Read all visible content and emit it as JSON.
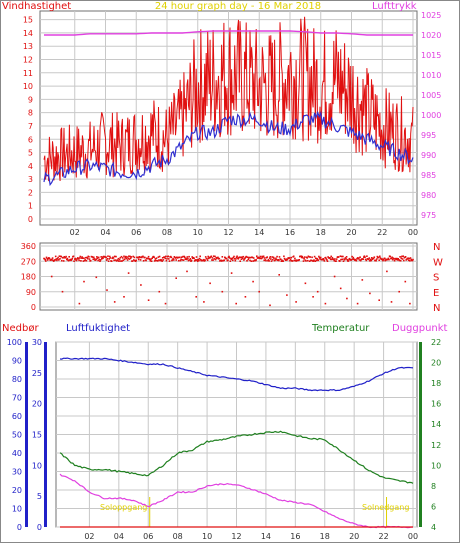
{
  "colors": {
    "wind": "#e01010",
    "wind_avg": "#3030d0",
    "pressure": "#e040e0",
    "direction": "#e01010",
    "humidity": "#2020c8",
    "temperature": "#208020",
    "dewpoint": "#e040e0",
    "precip": "#e01010",
    "sun": "#e0d000",
    "frame": "#707070",
    "grid": "#c8c8c8"
  },
  "chart_data": [
    {
      "type": "line",
      "title": "24 hour graph day - 16 Mar 2018",
      "ylabel": "Vindhastighet",
      "y2label": "Lufttrykk",
      "x_ticks": [
        "02",
        "04",
        "06",
        "08",
        "10",
        "12",
        "14",
        "16",
        "18",
        "20",
        "22",
        "00"
      ],
      "y_ticks": [
        "0",
        "1",
        "2",
        "3",
        "4",
        "5",
        "6",
        "7",
        "8",
        "9",
        "10",
        "11",
        "12",
        "13",
        "14",
        "15"
      ],
      "y2_ticks": [
        "975",
        "980",
        "985",
        "990",
        "995",
        "1000",
        "1005",
        "1010",
        "1015",
        "1020",
        "1025"
      ],
      "ylim": [
        0,
        15.5
      ],
      "y2lim": [
        974,
        1025.5
      ],
      "x": [
        0,
        1,
        2,
        3,
        4,
        5,
        6,
        7,
        8,
        9,
        10,
        11,
        12,
        13,
        14,
        15,
        16,
        17,
        18,
        19,
        20,
        21,
        22,
        23,
        24
      ],
      "series": [
        {
          "values": [
            4.5,
            4.8,
            5.0,
            5.2,
            5.8,
            5.5,
            6.0,
            6.5,
            6.0,
            7.5,
            10.0,
            10.5,
            11.0,
            10.5,
            10.0,
            10.0,
            11.0,
            10.5,
            10.0,
            10.5,
            9.5,
            8.0,
            7.0,
            6.5,
            6.0
          ]
        },
        {
          "values": [
            3.0,
            3.3,
            3.8,
            4.0,
            3.8,
            3.5,
            3.5,
            4.0,
            4.5,
            5.5,
            6.5,
            6.5,
            7.5,
            7.5,
            7.5,
            6.8,
            6.8,
            7.5,
            7.5,
            7.0,
            6.5,
            6.0,
            5.5,
            5.0,
            4.5
          ]
        },
        {
          "values": [
            1020,
            1020,
            1020,
            1020.3,
            1020.3,
            1020.3,
            1020.3,
            1020.5,
            1020.5,
            1020.5,
            1020.8,
            1021,
            1021,
            1021,
            1021,
            1021,
            1021,
            1020.8,
            1020.5,
            1020.5,
            1020.3,
            1020,
            1020,
            1020,
            1020
          ]
        }
      ]
    },
    {
      "type": "scatter",
      "ylabel_right": [
        "N",
        "W",
        "S",
        "E",
        "N"
      ],
      "y_ticks": [
        "0",
        "90",
        "180",
        "270",
        "360"
      ],
      "ylim": [
        0,
        360
      ],
      "x_ticks": [
        "02",
        "04",
        "06",
        "08",
        "10",
        "12",
        "14",
        "16",
        "18",
        "20",
        "22",
        "00"
      ],
      "main_band": {
        "hours": [
          0,
          24
        ],
        "values": [
          270,
          300
        ]
      },
      "scattered_points": [
        [
          0.5,
          180
        ],
        [
          1.2,
          90
        ],
        [
          2.3,
          20
        ],
        [
          2.6,
          150
        ],
        [
          3.4,
          175
        ],
        [
          4.1,
          100
        ],
        [
          4.6,
          30
        ],
        [
          5.2,
          60
        ],
        [
          5.5,
          200
        ],
        [
          6.3,
          130
        ],
        [
          6.8,
          40
        ],
        [
          7.5,
          90
        ],
        [
          7.9,
          20
        ],
        [
          8.6,
          170
        ],
        [
          9.3,
          210
        ],
        [
          9.9,
          60
        ],
        [
          10.4,
          30
        ],
        [
          10.8,
          140
        ],
        [
          11.6,
          90
        ],
        [
          12.2,
          200
        ],
        [
          12.5,
          20
        ],
        [
          13.1,
          60
        ],
        [
          13.6,
          150
        ],
        [
          14.0,
          90
        ],
        [
          14.7,
          10
        ],
        [
          15.3,
          190
        ],
        [
          15.8,
          70
        ],
        [
          16.4,
          30
        ],
        [
          17.0,
          140
        ],
        [
          17.5,
          60
        ],
        [
          17.8,
          90
        ],
        [
          18.3,
          20
        ],
        [
          18.9,
          180
        ],
        [
          19.3,
          110
        ],
        [
          19.7,
          50
        ],
        [
          20.4,
          20
        ],
        [
          20.7,
          160
        ],
        [
          21.2,
          80
        ],
        [
          21.8,
          40
        ],
        [
          22.3,
          210
        ],
        [
          22.6,
          30
        ],
        [
          23.1,
          90
        ],
        [
          23.5,
          150
        ],
        [
          23.8,
          20
        ]
      ]
    },
    {
      "type": "line",
      "labels": {
        "precip": "Nedbør",
        "humidity": "Luftfuktighet",
        "temperature": "Temperatur",
        "dewpoint": "Duggpunkt"
      },
      "annotations": [
        "Soloppgang",
        "Solnedgang"
      ],
      "x_ticks": [
        "02",
        "04",
        "06",
        "08",
        "10",
        "12",
        "14",
        "16",
        "18",
        "20",
        "22",
        "00"
      ],
      "humidity_ticks": [
        "0",
        "10",
        "20",
        "30",
        "40",
        "50",
        "60",
        "70",
        "80",
        "90",
        "100"
      ],
      "precip_ticks": [
        "0",
        "5",
        "10",
        "15",
        "20",
        "25",
        "30"
      ],
      "temp_ticks": [
        "4",
        "6",
        "8",
        "10",
        "12",
        "14",
        "16",
        "18",
        "20",
        "22"
      ],
      "humidity_lim": [
        0,
        100
      ],
      "precip_lim": [
        0,
        30
      ],
      "temp_lim": [
        4,
        22
      ],
      "x": [
        0,
        1,
        2,
        3,
        4,
        5,
        6,
        7,
        8,
        9,
        10,
        11,
        12,
        13,
        14,
        15,
        16,
        17,
        18,
        19,
        20,
        21,
        22,
        23,
        24
      ],
      "series": [
        {
          "values": [
            91,
            91,
            91,
            91,
            90,
            89,
            88,
            88,
            86,
            84,
            82,
            81,
            80,
            79,
            77,
            75,
            75,
            74,
            74,
            74,
            76,
            79,
            83,
            86,
            86
          ]
        },
        {
          "values": [
            11.2,
            10.0,
            9.6,
            9.6,
            9.4,
            9.2,
            9.0,
            10.0,
            11.2,
            11.5,
            12.3,
            12.5,
            12.8,
            13.0,
            13.2,
            13.3,
            12.9,
            12.6,
            12.5,
            11.5,
            10.5,
            9.5,
            8.8,
            8.5,
            8.3
          ]
        },
        {
          "values": [
            9.1,
            8.5,
            7.4,
            6.8,
            6.8,
            6.6,
            6.0,
            6.6,
            7.4,
            7.4,
            8.0,
            8.2,
            8.1,
            7.7,
            7.2,
            6.6,
            6.4,
            6.2,
            5.5,
            4.8,
            4.3,
            4.0,
            4.0,
            4.0,
            4.0
          ]
        },
        {
          "values": [
            0,
            0,
            0,
            0,
            0,
            0,
            0,
            0,
            0,
            0,
            0,
            0,
            0,
            0,
            0,
            0,
            0,
            0,
            0,
            0,
            0,
            0,
            0,
            0,
            0
          ]
        }
      ]
    }
  ]
}
